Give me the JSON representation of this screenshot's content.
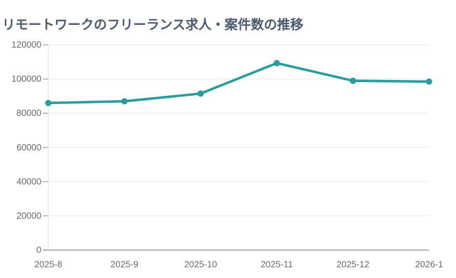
{
  "chart_data": {
    "type": "line",
    "title": "リモートワークのフリーランス求人・案件数の推移",
    "xlabel": "",
    "ylabel": "",
    "categories": [
      "2025-8",
      "2025-9",
      "2025-10",
      "2025-11",
      "2025-12",
      "2026-1"
    ],
    "values": [
      86000,
      87000,
      91500,
      109300,
      99000,
      98500
    ],
    "ylim": [
      0,
      120000
    ],
    "yticks": [
      {
        "value": 0,
        "label": "0"
      },
      {
        "value": 20000,
        "label": "20000"
      },
      {
        "value": 40000,
        "label": "40000"
      },
      {
        "value": 60000,
        "label": "60000"
      },
      {
        "value": 80000,
        "label": "80000"
      },
      {
        "value": 100000,
        "label": "100000"
      },
      {
        "value": 120000,
        "label": "120000"
      }
    ],
    "grid": true,
    "legend": "none",
    "colors": {
      "line": "#2b9c9e",
      "marker": "#2b9c9e",
      "title": "#4a5a6d",
      "tick_label": "#666666",
      "gridline": "#e9e9e9",
      "axis": "#9b9b9b",
      "y_axis_line": "#e0e0e0",
      "background": "#ffffff"
    }
  }
}
